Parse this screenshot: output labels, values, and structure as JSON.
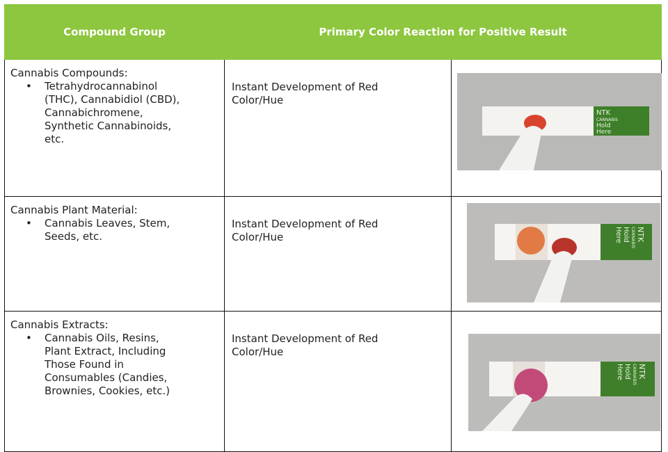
{
  "table": {
    "headers": [
      "Compound Group",
      "Primary Color Reaction for Positive Result"
    ],
    "rows": [
      {
        "group": "Cannabis Compounds:",
        "items": [
          "Tetrahydrocannabinol (THC), Cannabidiol (CBD), Cannabichromene, Synthetic Cannabinoids, etc."
        ],
        "reaction": "Instant Development of Red Color/Hue"
      },
      {
        "group": "Cannabis Plant Material:",
        "items": [
          "Cannabis Leaves, Stem, Seeds, etc."
        ],
        "reaction": "Instant Development of Red Color/Hue"
      },
      {
        "group": "Cannabis Extracts:",
        "items": [
          "Cannabis Oils, Resins, Plant Extract, Including Those Found in Consumables (Candies, Brownies, Cookies, etc.)"
        ],
        "reaction": "Instant Development of Red Color/Hue"
      }
    ]
  },
  "strip_label": {
    "brand": "NTK",
    "product": "CANNABIS",
    "hold": "Hold",
    "here": "Here"
  }
}
